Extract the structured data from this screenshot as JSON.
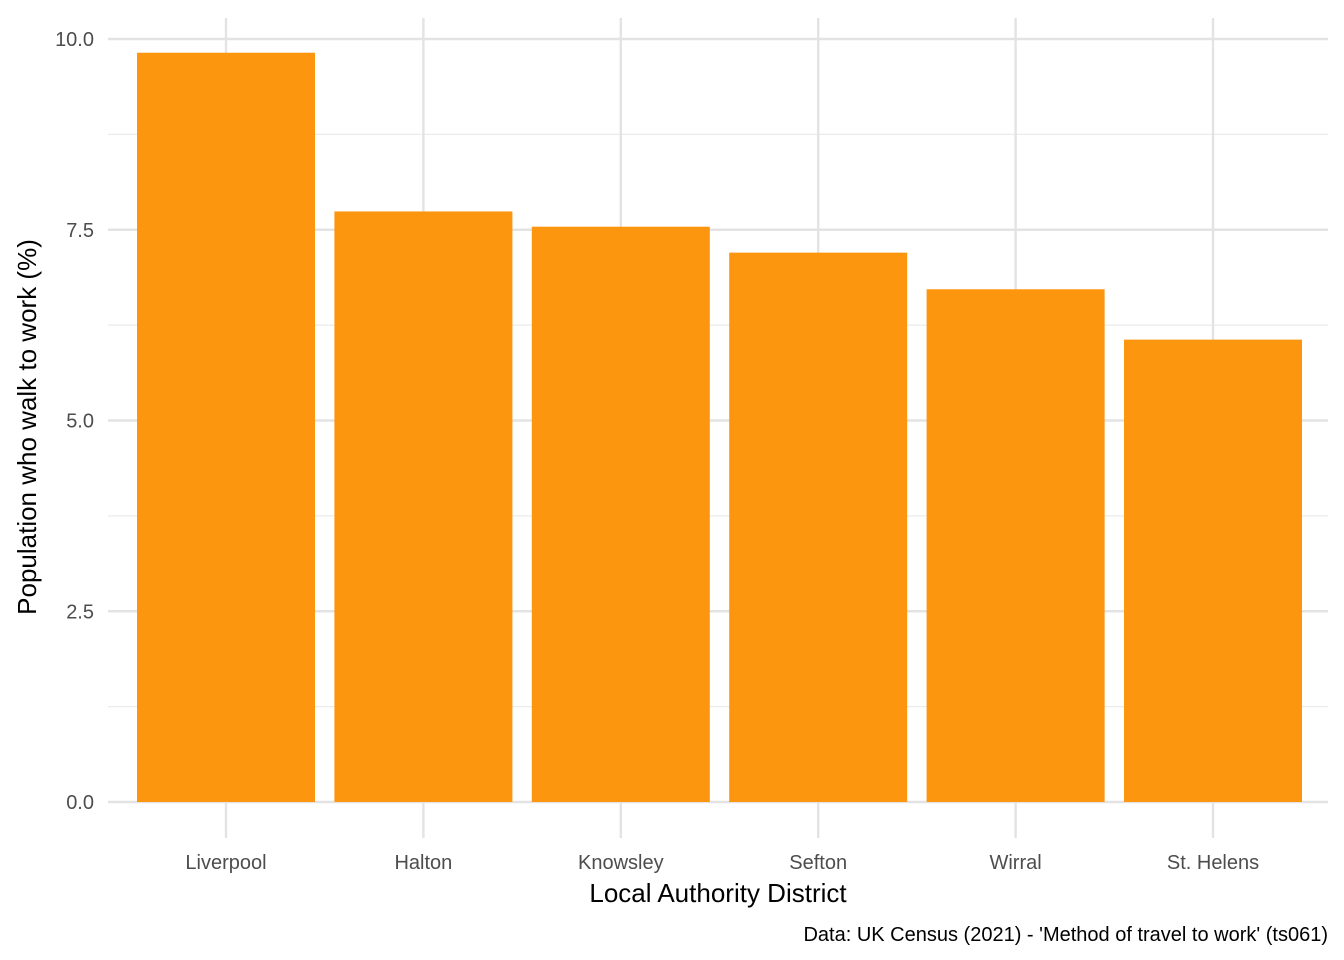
{
  "chart_data": {
    "type": "bar",
    "categories": [
      "Liverpool",
      "Halton",
      "Knowsley",
      "Sefton",
      "Wirral",
      "St. Helens"
    ],
    "values": [
      9.82,
      7.74,
      7.54,
      7.2,
      6.72,
      6.06
    ],
    "title": "",
    "xlabel": "Local Authority District",
    "ylabel": "Population who walk to work (%)",
    "ylim": [
      0,
      10
    ],
    "yticks": [
      0,
      2.5,
      5,
      7.5,
      10
    ],
    "ytick_labels": [
      "0.0",
      "2.5",
      "5.0",
      "7.5",
      "10.0"
    ],
    "caption": "Data: UK Census (2021) - 'Method of travel to work' (ts061)",
    "bar_color": "#FC960F",
    "grid": true,
    "legend": "none"
  }
}
